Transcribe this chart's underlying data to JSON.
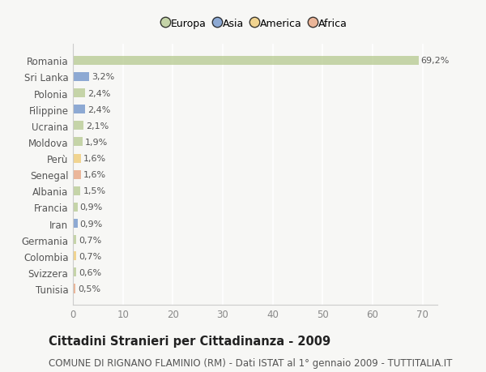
{
  "categories": [
    "Romania",
    "Sri Lanka",
    "Polonia",
    "Filippine",
    "Ucraina",
    "Moldova",
    "Perù",
    "Senegal",
    "Albania",
    "Francia",
    "Iran",
    "Germania",
    "Colombia",
    "Svizzera",
    "Tunisia"
  ],
  "values": [
    69.2,
    3.2,
    2.4,
    2.4,
    2.1,
    1.9,
    1.6,
    1.6,
    1.5,
    0.9,
    0.9,
    0.7,
    0.7,
    0.6,
    0.5
  ],
  "labels": [
    "69,2%",
    "3,2%",
    "2,4%",
    "2,4%",
    "2,1%",
    "1,9%",
    "1,6%",
    "1,6%",
    "1,5%",
    "0,9%",
    "0,9%",
    "0,7%",
    "0,7%",
    "0,6%",
    "0,5%"
  ],
  "continents": [
    "Europa",
    "Asia",
    "Europa",
    "Asia",
    "Europa",
    "Europa",
    "America",
    "Africa",
    "Europa",
    "Europa",
    "Asia",
    "Europa",
    "America",
    "Europa",
    "Africa"
  ],
  "colors": {
    "Europa": "#b5c98e",
    "Asia": "#6a8fc8",
    "America": "#f0c96e",
    "Africa": "#e8a07a"
  },
  "legend_order": [
    "Europa",
    "Asia",
    "America",
    "Africa"
  ],
  "title": "Cittadini Stranieri per Cittadinanza - 2009",
  "subtitle": "COMUNE DI RIGNANO FLAMINIO (RM) - Dati ISTAT al 1° gennaio 2009 - TUTTITALIA.IT",
  "xlim": [
    0,
    73
  ],
  "xticks": [
    0,
    10,
    20,
    30,
    40,
    50,
    60,
    70
  ],
  "bg_color": "#f7f7f5",
  "bar_height": 0.55,
  "title_fontsize": 10.5,
  "subtitle_fontsize": 8.5,
  "label_fontsize": 8,
  "tick_fontsize": 8.5,
  "legend_fontsize": 9
}
